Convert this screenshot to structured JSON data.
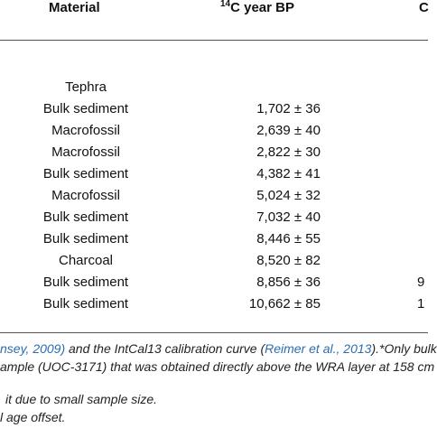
{
  "table": {
    "headers": {
      "material": "Material",
      "c14_sup": "14",
      "c14_text": "C year BP",
      "cut": "C"
    },
    "rows": [
      {
        "material": "Tephra",
        "c14": "",
        "cut": ""
      },
      {
        "material": "Bulk sediment",
        "c14": "1,702 ± 36",
        "cut": ""
      },
      {
        "material": "Macrofossil",
        "c14": "2,639 ± 40",
        "cut": ""
      },
      {
        "material": "Macrofossil",
        "c14": "2,822 ± 30",
        "cut": ""
      },
      {
        "material": "Bulk sediment",
        "c14": "4,382 ± 41",
        "cut": ""
      },
      {
        "material": "Macrofossil",
        "c14": "5,024 ± 32",
        "cut": ""
      },
      {
        "material": "Bulk sediment",
        "c14": "7,032 ± 40",
        "cut": ""
      },
      {
        "material": "Bulk sediment",
        "c14": "8,446 ± 55",
        "cut": ""
      },
      {
        "material": "Charcoal",
        "c14": "8,520 ± 82",
        "cut": ""
      },
      {
        "material": "Bulk sediment",
        "c14": "8,856 ± 36",
        "cut": "9"
      },
      {
        "material": "Bulk sediment",
        "c14": "10,662 ± 85",
        "cut": "1"
      }
    ]
  },
  "footnotes": {
    "line1": {
      "ref1": "nsey, 2009)",
      "mid": " and the IntCal13 calibration curve (",
      "ref2": "Reimer et al., 2013",
      "end": ").*Only bulk"
    },
    "line2": "ample (UOC-3171) that was obtained directly above the WRA layer at 158 cm",
    "line3": "it due to small sample size.",
    "line4": "l age offset."
  }
}
